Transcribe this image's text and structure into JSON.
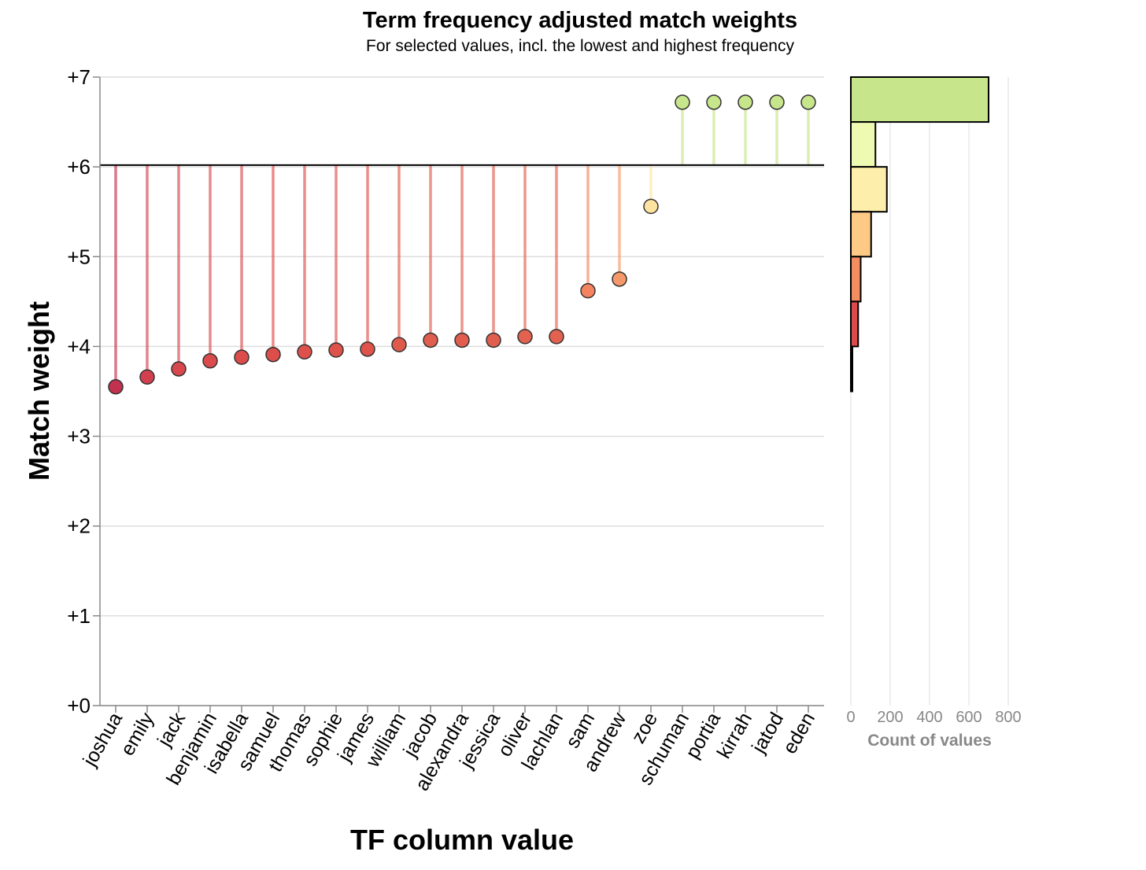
{
  "chart_data": [
    {
      "type": "scatter",
      "title": "Term frequency adjusted match weights",
      "subtitle": "For selected values, incl. the lowest and highest frequency",
      "xlabel": "TF column value",
      "ylabel": "Match weight",
      "ylim": [
        0,
        7
      ],
      "y_ticks": [
        "+0",
        "+1",
        "+2",
        "+3",
        "+4",
        "+5",
        "+6",
        "+7"
      ],
      "baseline": 6.02,
      "grid": true,
      "categories": [
        "joshua",
        "emily",
        "jack",
        "benjamin",
        "isabella",
        "samuel",
        "thomas",
        "sophie",
        "james",
        "william",
        "jacob",
        "alexandra",
        "jessica",
        "oliver",
        "lachlan",
        "sam",
        "andrew",
        "zoe",
        "schuman",
        "portia",
        "kirrah",
        "jatod",
        "eden"
      ],
      "values": [
        3.55,
        3.66,
        3.75,
        3.84,
        3.88,
        3.91,
        3.94,
        3.96,
        3.97,
        4.02,
        4.07,
        4.07,
        4.07,
        4.11,
        4.11,
        4.62,
        4.75,
        5.56,
        6.72,
        6.72,
        6.72,
        6.72,
        6.72
      ],
      "colors": [
        "#c2314f",
        "#d2404f",
        "#d8474e",
        "#dc4b4b",
        "#dc4c4b",
        "#dd4e4b",
        "#de504b",
        "#df524b",
        "#df534b",
        "#e05a4c",
        "#e15e4e",
        "#e15e4e",
        "#e15e4e",
        "#e2614f",
        "#e2614f",
        "#f4845f",
        "#f6996a",
        "#fee3a0",
        "#c7e58a",
        "#c7e58a",
        "#c7e58a",
        "#c7e58a",
        "#c7e58a"
      ]
    },
    {
      "type": "bar",
      "orientation": "horizontal",
      "xlabel": "Count of values",
      "xlim": [
        0,
        800
      ],
      "x_ticks": [
        "0",
        "200",
        "400",
        "600",
        "800"
      ],
      "bins": [
        {
          "y_from": 6.5,
          "y_to": 7.0,
          "count": 700,
          "color": "#c7e58a"
        },
        {
          "y_from": 6.0,
          "y_to": 6.5,
          "count": 125,
          "color": "#eef9b2"
        },
        {
          "y_from": 5.5,
          "y_to": 6.0,
          "count": 183,
          "color": "#fdeeab"
        },
        {
          "y_from": 5.0,
          "y_to": 5.5,
          "count": 103,
          "color": "#fdca85"
        },
        {
          "y_from": 4.5,
          "y_to": 5.0,
          "count": 50,
          "color": "#f38e61"
        },
        {
          "y_from": 4.0,
          "y_to": 4.5,
          "count": 37,
          "color": "#dc4b4b"
        },
        {
          "y_from": 3.5,
          "y_to": 4.0,
          "count": 8,
          "color": "#c5304d"
        }
      ]
    }
  ]
}
